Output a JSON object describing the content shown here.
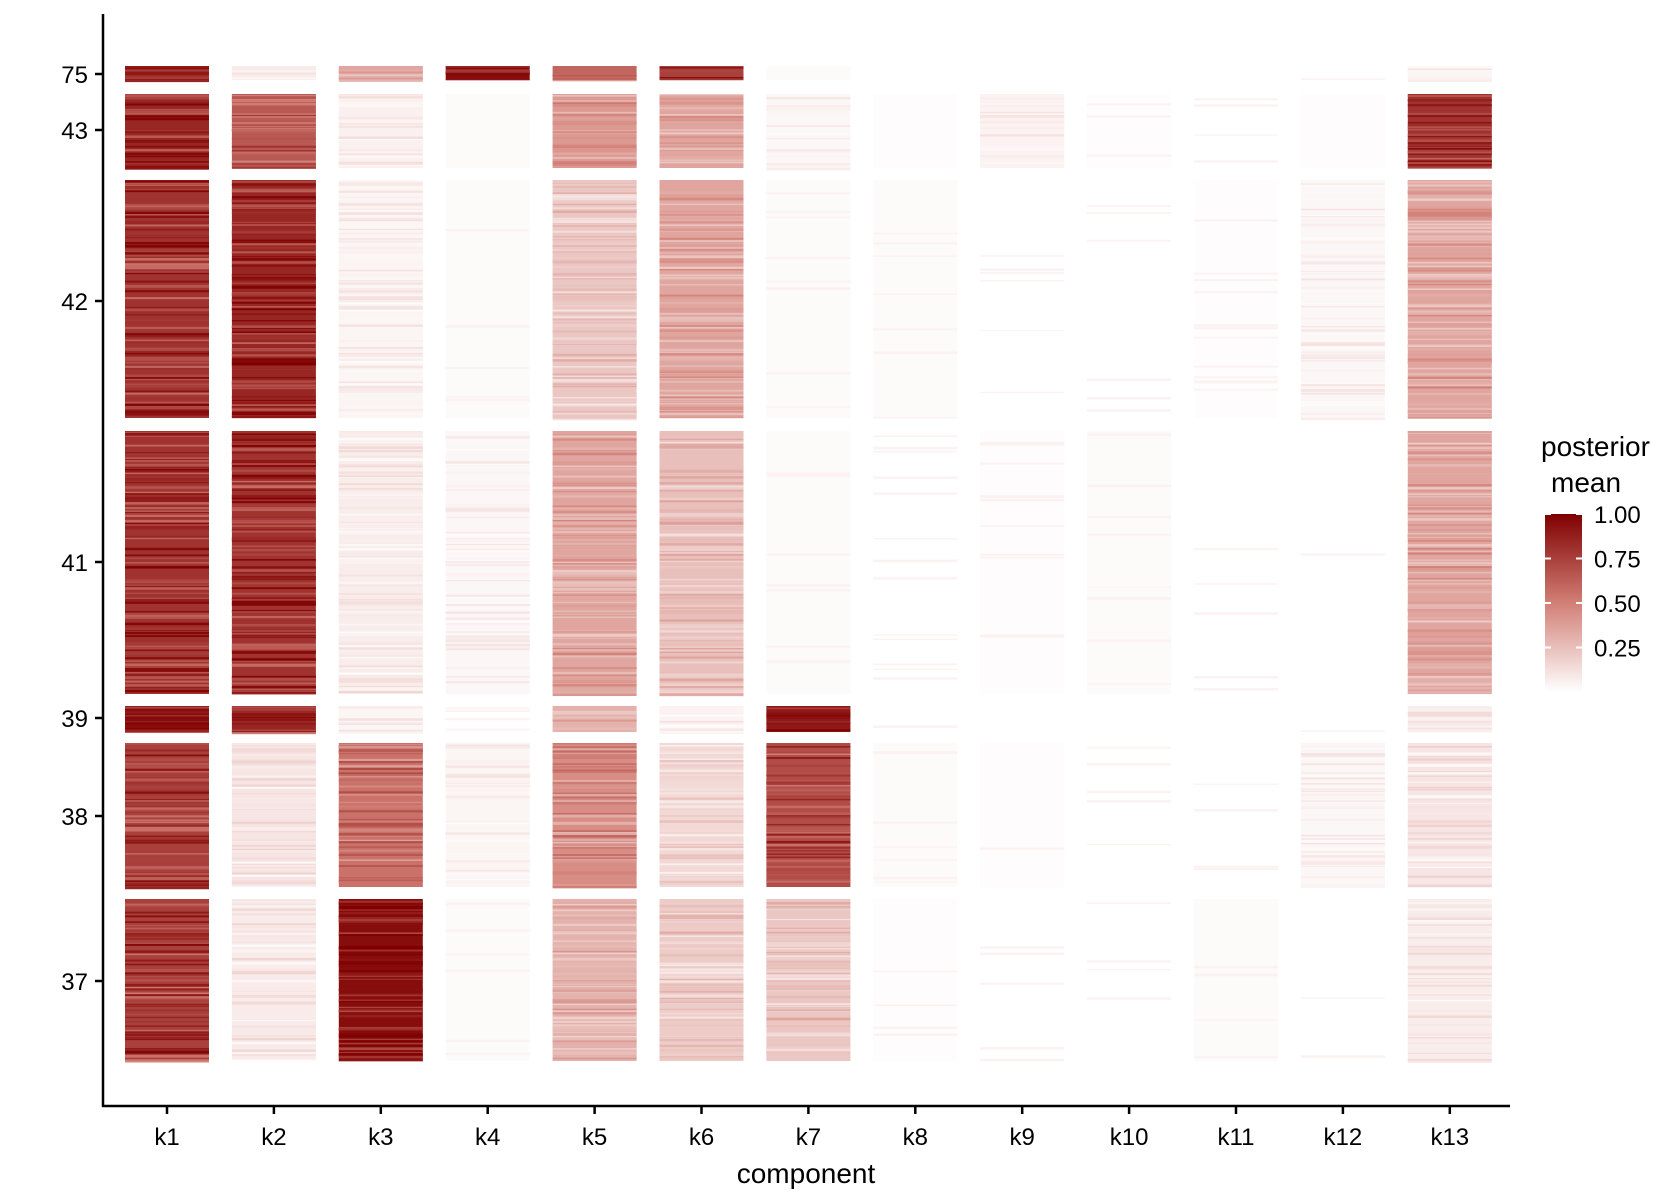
{
  "chart_data": {
    "type": "heatmap",
    "title": "",
    "xlabel": "component",
    "ylabel": "",
    "x_categories": [
      "k1",
      "k2",
      "k3",
      "k4",
      "k5",
      "k6",
      "k7",
      "k8",
      "k9",
      "k10",
      "k11",
      "k12",
      "k13"
    ],
    "y_tick_labels": [
      "75",
      "43",
      "42",
      "41",
      "39",
      "38",
      "37"
    ],
    "row_groups": [
      {
        "label": "75",
        "labeled": true,
        "values": [
          0.9,
          0.08,
          0.35,
          0.95,
          0.6,
          0.75,
          0.02,
          0.0,
          0.0,
          0.0,
          0.0,
          0.0,
          0.04
        ]
      },
      {
        "label": "43",
        "labeled": true,
        "values": [
          0.85,
          0.65,
          0.06,
          0.02,
          0.4,
          0.35,
          0.03,
          0.01,
          0.05,
          0.01,
          0.0,
          0.01,
          0.8
        ]
      },
      {
        "label": "42",
        "labeled": true,
        "values": [
          0.8,
          0.85,
          0.04,
          0.02,
          0.22,
          0.35,
          0.02,
          0.02,
          0.0,
          0.0,
          0.01,
          0.03,
          0.35
        ]
      },
      {
        "label": "41",
        "labeled": true,
        "values": [
          0.8,
          0.8,
          0.07,
          0.03,
          0.35,
          0.25,
          0.02,
          0.0,
          0.01,
          0.02,
          0.0,
          0.0,
          0.35
        ]
      },
      {
        "label": "39",
        "labeled": true,
        "values": [
          0.95,
          0.85,
          0.04,
          0.0,
          0.3,
          0.05,
          0.9,
          0.0,
          0.0,
          0.0,
          0.0,
          0.0,
          0.06
        ]
      },
      {
        "label": "38",
        "labeled": true,
        "values": [
          0.75,
          0.1,
          0.55,
          0.04,
          0.45,
          0.15,
          0.7,
          0.02,
          0.01,
          0.0,
          0.0,
          0.03,
          0.1
        ]
      },
      {
        "label": "37",
        "labeled": true,
        "values": [
          0.75,
          0.08,
          0.95,
          0.02,
          0.3,
          0.2,
          0.22,
          0.01,
          0.0,
          0.0,
          0.02,
          0.0,
          0.07
        ]
      }
    ],
    "colorscale": {
      "low": "#ffffff",
      "high": "#7f0000",
      "min": 0,
      "max": 1
    },
    "legend": {
      "title_line1": "posterior",
      "title_line2": "mean",
      "ticks": [
        "1.00",
        "0.75",
        "0.50",
        "0.25"
      ],
      "tick_values": [
        1.0,
        0.75,
        0.5,
        0.25
      ],
      "position": "right"
    },
    "grid": false
  }
}
